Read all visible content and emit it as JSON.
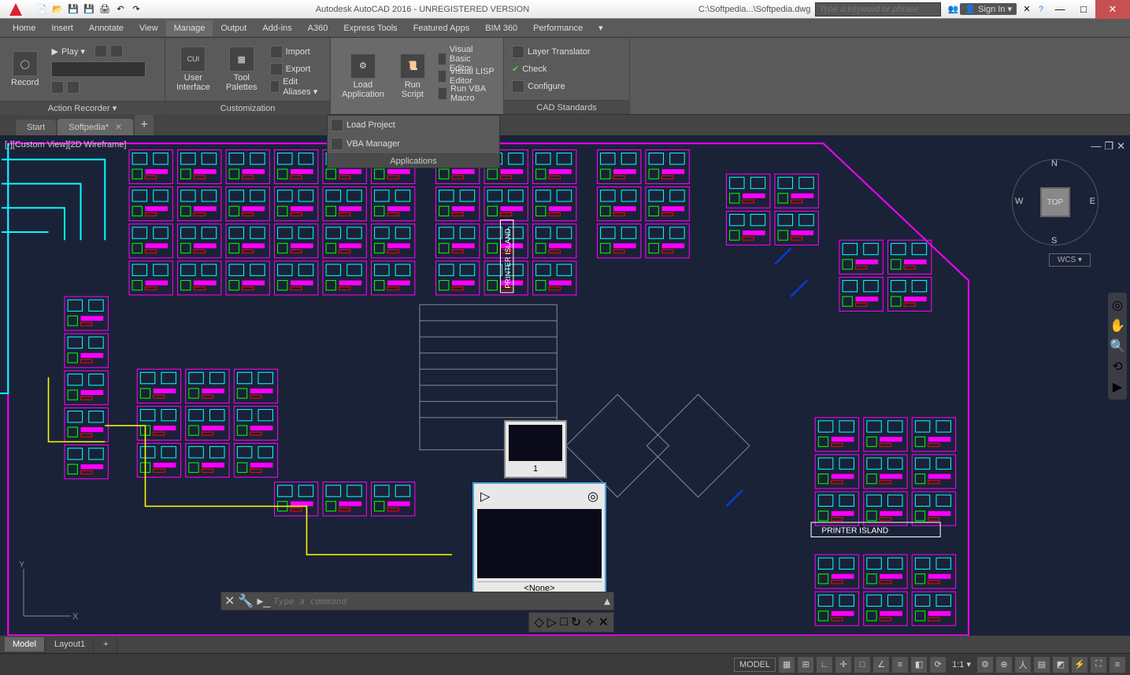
{
  "titlebar": {
    "app_title": "Autodesk AutoCAD 2016 - UNREGISTERED VERSION",
    "file_path": "C:\\Softpedia...\\Softpedia.dwg",
    "search_placeholder": "Type a keyword or phrase",
    "sign_in": "Sign In"
  },
  "menubar": {
    "items": [
      "Home",
      "Insert",
      "Annotate",
      "View",
      "Manage",
      "Output",
      "Add-ins",
      "A360",
      "Express Tools",
      "Featured Apps",
      "BIM 360",
      "Performance"
    ],
    "active_index": 4
  },
  "ribbon": {
    "panels": {
      "action_recorder": {
        "title": "Action Recorder ▾",
        "record": "Record",
        "play": "Play ▾"
      },
      "customization": {
        "title": "Customization",
        "user_interface": "User\nInterface",
        "tool_palettes": "Tool\nPalettes",
        "import": "Import",
        "export": "Export",
        "edit_aliases": "Edit Aliases ▾"
      },
      "applications": {
        "title": "Applications",
        "load_application": "Load\nApplication",
        "run_script": "Run\nScript",
        "visual_basic_editor": "Visual Basic Editor",
        "visual_lisp_editor": "Visual LISP Editor",
        "run_vba_macro": "Run VBA Macro",
        "load_project": "Load Project",
        "vba_manager": "VBA Manager"
      },
      "cad_standards": {
        "title": "CAD Standards",
        "layer_translator": "Layer Translator",
        "check": "Check",
        "configure": "Configure"
      }
    }
  },
  "doctabs": {
    "items": [
      "Start",
      "Softpedia*"
    ],
    "active_index": 1
  },
  "viewport": {
    "label": "[-][Custom View][2D Wireframe]"
  },
  "viewcube": {
    "n": "N",
    "s": "S",
    "e": "E",
    "w": "W",
    "top": "TOP",
    "wcs": "WCS ▾"
  },
  "ucs": {
    "y": "Y",
    "x": "X"
  },
  "commandbar": {
    "placeholder": "Type a command"
  },
  "preview": {
    "p1_label": "1",
    "p2_label": "<None>"
  },
  "layouttabs": {
    "items": [
      "Model",
      "Layout1"
    ],
    "active_index": 0
  },
  "statusbar": {
    "model": "MODEL",
    "scale": "1:1 ▾",
    "drawing_label": "PRINTER ISLAND"
  },
  "colors": {
    "canvas_bg": "#1a2238",
    "magenta": "#ff00ff",
    "cyan": "#00ffff",
    "yellow": "#ffff00",
    "green": "#00ff00",
    "red": "#ff0000",
    "blue": "#0040ff",
    "grey": "#888888",
    "white": "#ffffff"
  }
}
